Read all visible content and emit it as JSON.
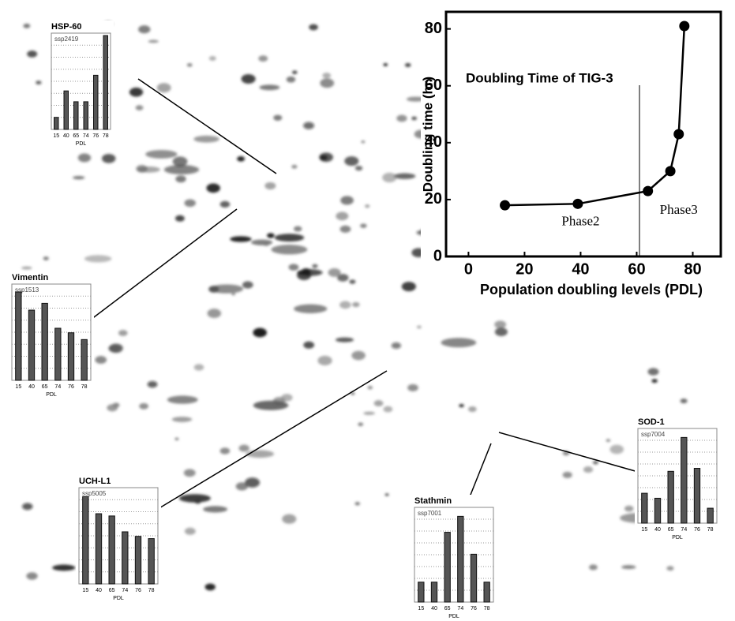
{
  "chart_data": [
    {
      "type": "line",
      "title": "Doubling Time of TIG-3",
      "x_label": "Population doubling levels (PDL)",
      "y_label": "Doubling time (hr)",
      "x": [
        13,
        39,
        64,
        72,
        75,
        77
      ],
      "values": [
        18,
        18.5,
        23,
        30,
        43,
        81
      ],
      "color": "#000000",
      "xlim": [
        -8,
        90
      ],
      "xticks": [
        0,
        20,
        40,
        60,
        80
      ],
      "ylim": [
        0,
        86
      ],
      "yticks": [
        0,
        20,
        40,
        60,
        80
      ],
      "phase_boundary": 61,
      "annotations": [
        {
          "text": "Phase2",
          "x": 40,
          "y": 12
        },
        {
          "text": "Phase3",
          "x": 75,
          "y": 16
        }
      ]
    },
    {
      "type": "bar",
      "title": "HSP-60",
      "subtitle": "ssp2419",
      "x_label": "PDL",
      "categories": [
        "15",
        "40",
        "65",
        "74",
        "76",
        "78"
      ],
      "values": [
        1,
        3.2,
        2.3,
        2.3,
        4.5,
        7.8
      ],
      "ylim": [
        0,
        8
      ],
      "color": "#555555"
    },
    {
      "type": "bar",
      "title": "Vimentin",
      "subtitle": "ssp1513",
      "x_label": "PDL",
      "categories": [
        "15",
        "40",
        "65",
        "74",
        "76",
        "78"
      ],
      "values": [
        7.8,
        6.2,
        6.8,
        4.6,
        4.2,
        3.6
      ],
      "ylim": [
        0,
        8.5
      ],
      "color": "#555555"
    },
    {
      "type": "bar",
      "title": "UCH-L1",
      "subtitle": "ssp5005",
      "x_label": "PDL",
      "categories": [
        "15",
        "40",
        "65",
        "74",
        "76",
        "78"
      ],
      "values": [
        7.7,
        6.2,
        6,
        4.6,
        4.2,
        4
      ],
      "ylim": [
        0,
        8.5
      ],
      "color": "#555555"
    },
    {
      "type": "bar",
      "title": "Stathmin",
      "subtitle": "ssp7001",
      "x_label": "PDL",
      "categories": [
        "15",
        "40",
        "65",
        "74",
        "76",
        "78"
      ],
      "values": [
        2,
        2,
        7,
        8.6,
        4.8,
        2
      ],
      "ylim": [
        0,
        9.5
      ],
      "color": "#555555"
    },
    {
      "type": "bar",
      "title": "SOD-1",
      "subtitle": "ssp7004",
      "x_label": "PDL",
      "categories": [
        "15",
        "40",
        "65",
        "74",
        "76",
        "78"
      ],
      "values": [
        3,
        2.5,
        5.2,
        8.6,
        5.5,
        1.5
      ],
      "ylim": [
        0,
        9.5
      ],
      "color": "#555555"
    }
  ]
}
